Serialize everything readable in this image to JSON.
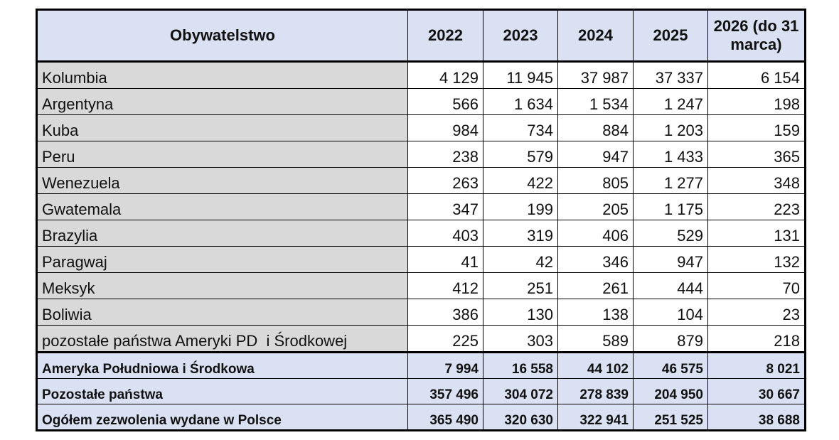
{
  "table": {
    "header": [
      "Obywatelstwo",
      "2022",
      "2023",
      "2024",
      "2025",
      "2026 (do 31 marca)"
    ],
    "rows": [
      [
        "Kolumbia",
        "4 129",
        "11 945",
        "37 987",
        "37 337",
        "6 154"
      ],
      [
        "Argentyna",
        "566",
        "1 634",
        "1 534",
        "1 247",
        "198"
      ],
      [
        "Kuba",
        "984",
        "734",
        "884",
        "1 203",
        "159"
      ],
      [
        "Peru",
        "238",
        "579",
        "947",
        "1 433",
        "365"
      ],
      [
        "Wenezuela",
        "263",
        "422",
        "805",
        "1 277",
        "348"
      ],
      [
        "Gwatemala",
        "347",
        "199",
        "205",
        "1 175",
        "223"
      ],
      [
        "Brazylia",
        "403",
        "319",
        "406",
        "529",
        "131"
      ],
      [
        "Paragwaj",
        "41",
        "42",
        "346",
        "947",
        "132"
      ],
      [
        "Meksyk",
        "412",
        "251",
        "261",
        "444",
        "70"
      ],
      [
        "Boliwia",
        "386",
        "130",
        "138",
        "104",
        "23"
      ],
      [
        "pozostałe państwa Ameryki PD  i Środkowej",
        "225",
        "303",
        "589",
        "879",
        "218"
      ]
    ],
    "summary": [
      [
        "Ameryka Południowa i Środkowa",
        "7 994",
        "16 558",
        "44 102",
        "46 575",
        "8 021"
      ],
      [
        "Pozostałe państwa",
        "357 496",
        "304 072",
        "278 839",
        "204 950",
        "30 667"
      ],
      [
        "Ogółem zezwolenia wydane w Polsce",
        "365 490",
        "320 630",
        "322 941",
        "251 525",
        "38 688"
      ]
    ]
  }
}
